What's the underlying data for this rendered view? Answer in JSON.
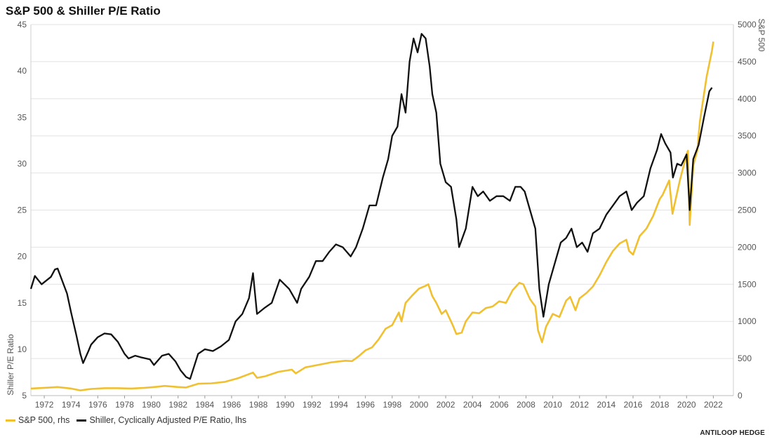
{
  "chart_data": {
    "type": "line",
    "title": "S&P 500 & Shiller P/E Ratio",
    "ylabel_left": "Shiller P/E Ratio",
    "ylabel_right": "S&P 500",
    "xlim": [
      1971,
      2023.5
    ],
    "ylim_left": [
      5,
      45
    ],
    "ylim_right": [
      0,
      5000
    ],
    "x_ticks": [
      1972,
      1974,
      1976,
      1978,
      1980,
      1982,
      1984,
      1986,
      1988,
      1990,
      1992,
      1994,
      1996,
      1998,
      2000,
      2002,
      2004,
      2006,
      2008,
      2010,
      2012,
      2014,
      2016,
      2018,
      2020,
      2022
    ],
    "y_ticks_left": [
      5,
      10,
      15,
      20,
      25,
      30,
      35,
      40,
      45
    ],
    "y_ticks_right": [
      0,
      500,
      1000,
      1500,
      2000,
      2500,
      3000,
      3500,
      4000,
      4500,
      5000
    ],
    "grid": true,
    "legend_position": "bottom-left",
    "series": [
      {
        "name": "S&P 500, rhs",
        "axis": "right",
        "color": "#f0c030",
        "x": [
          1971.0,
          1972.0,
          1973.0,
          1974.0,
          1974.7,
          1975.5,
          1976.5,
          1977.5,
          1978.5,
          1979.5,
          1980.5,
          1981.0,
          1982.0,
          1982.6,
          1983.5,
          1984.5,
          1985.5,
          1986.5,
          1987.6,
          1987.9,
          1988.5,
          1989.5,
          1990.5,
          1990.8,
          1991.5,
          1992.5,
          1993.5,
          1994.5,
          1995.0,
          1995.5,
          1996.0,
          1996.5,
          1997.0,
          1997.5,
          1998.0,
          1998.5,
          1998.7,
          1999.0,
          1999.5,
          2000.0,
          2000.5,
          2000.7,
          2001.0,
          2001.3,
          2001.7,
          2002.0,
          2002.5,
          2002.8,
          2003.2,
          2003.5,
          2004.0,
          2004.5,
          2005.0,
          2005.5,
          2006.0,
          2006.5,
          2007.0,
          2007.5,
          2007.8,
          2008.3,
          2008.7,
          2008.9,
          2009.2,
          2009.5,
          2010.0,
          2010.5,
          2011.0,
          2011.3,
          2011.7,
          2012.0,
          2012.5,
          2013.0,
          2013.5,
          2014.0,
          2014.5,
          2015.0,
          2015.5,
          2015.7,
          2016.0,
          2016.5,
          2017.0,
          2017.5,
          2018.0,
          2018.2,
          2018.7,
          2018.95,
          2019.5,
          2020.0,
          2020.1,
          2020.23,
          2020.5,
          2020.8,
          2021.0,
          2021.5,
          2021.9,
          2022.0
        ],
        "values": [
          95,
          105,
          115,
          95,
          70,
          90,
          100,
          100,
          95,
          105,
          120,
          130,
          115,
          110,
          160,
          165,
          185,
          235,
          310,
          240,
          260,
          320,
          350,
          300,
          380,
          415,
          450,
          470,
          465,
          530,
          610,
          650,
          760,
          900,
          950,
          1120,
          1000,
          1250,
          1350,
          1440,
          1480,
          1500,
          1340,
          1250,
          1100,
          1150,
          960,
          830,
          850,
          1000,
          1120,
          1110,
          1180,
          1200,
          1270,
          1250,
          1420,
          1520,
          1500,
          1300,
          1200,
          880,
          720,
          930,
          1100,
          1060,
          1280,
          1330,
          1150,
          1310,
          1380,
          1470,
          1620,
          1800,
          1950,
          2050,
          2100,
          1950,
          1900,
          2150,
          2250,
          2420,
          2650,
          2700,
          2900,
          2450,
          2900,
          3250,
          3300,
          2300,
          3100,
          3300,
          3700,
          4300,
          4650,
          4770
        ]
      },
      {
        "name": "Shiller, Cyclically Adjusted P/E Ratio, lhs",
        "axis": "left",
        "color": "#111111",
        "x": [
          1971.0,
          1971.3,
          1971.8,
          1972.5,
          1972.8,
          1973.0,
          1973.7,
          1974.0,
          1974.4,
          1974.7,
          1974.9,
          1975.3,
          1975.5,
          1976.0,
          1976.5,
          1977.0,
          1977.5,
          1978.0,
          1978.3,
          1978.8,
          1979.3,
          1979.9,
          1980.2,
          1980.8,
          1981.3,
          1981.8,
          1982.2,
          1982.6,
          1982.9,
          1983.5,
          1984.0,
          1984.6,
          1985.2,
          1985.8,
          1986.3,
          1986.8,
          1987.3,
          1987.6,
          1987.9,
          1988.5,
          1989.0,
          1989.6,
          1990.3,
          1990.9,
          1991.2,
          1991.8,
          1992.3,
          1992.8,
          1993.3,
          1993.8,
          1994.3,
          1994.9,
          1995.3,
          1995.8,
          1996.3,
          1996.8,
          1997.3,
          1997.7,
          1998.0,
          1998.4,
          1998.7,
          1999.0,
          1999.3,
          1999.6,
          1999.9,
          2000.2,
          2000.5,
          2000.8,
          2001.0,
          2001.3,
          2001.6,
          2002.0,
          2002.4,
          2002.8,
          2003.0,
          2003.5,
          2004.0,
          2004.4,
          2004.8,
          2005.3,
          2005.8,
          2006.3,
          2006.8,
          2007.2,
          2007.6,
          2007.9,
          2008.3,
          2008.7,
          2009.0,
          2009.3,
          2009.7,
          2010.2,
          2010.6,
          2011.0,
          2011.4,
          2011.8,
          2012.2,
          2012.6,
          2013.0,
          2013.5,
          2014.0,
          2014.5,
          2015.0,
          2015.5,
          2015.9,
          2016.3,
          2016.8,
          2017.3,
          2017.8,
          2018.1,
          2018.4,
          2018.8,
          2018.98,
          2019.3,
          2019.6,
          2020.0,
          2020.23,
          2020.5,
          2020.9,
          2021.3,
          2021.7,
          2021.9
        ],
        "values": [
          16.5,
          17.9,
          17.0,
          17.8,
          18.6,
          18.7,
          16.0,
          14.0,
          11.5,
          9.5,
          8.5,
          9.8,
          10.5,
          11.3,
          11.7,
          11.6,
          10.8,
          9.5,
          9.0,
          9.3,
          9.1,
          8.9,
          8.3,
          9.3,
          9.5,
          8.7,
          7.7,
          7.0,
          6.8,
          9.5,
          10.0,
          9.8,
          10.3,
          11.0,
          13.0,
          13.8,
          15.5,
          18.2,
          13.8,
          14.5,
          15.0,
          17.5,
          16.5,
          15.0,
          16.5,
          17.8,
          19.5,
          19.5,
          20.5,
          21.3,
          21.0,
          20.0,
          21.0,
          23.0,
          25.5,
          25.5,
          28.5,
          30.5,
          33.0,
          34.0,
          37.5,
          35.5,
          41.0,
          43.5,
          42.0,
          44.0,
          43.5,
          40.5,
          37.5,
          35.5,
          30.0,
          28.0,
          27.5,
          24.0,
          21.0,
          23.0,
          27.5,
          26.5,
          27.0,
          26.0,
          26.5,
          26.5,
          26.0,
          27.5,
          27.5,
          27.0,
          25.0,
          23.0,
          16.5,
          13.5,
          17.0,
          19.5,
          21.5,
          22.0,
          23.0,
          21.0,
          21.5,
          20.5,
          22.5,
          23.0,
          24.5,
          25.5,
          26.5,
          27.0,
          25.0,
          25.8,
          26.5,
          29.5,
          31.5,
          33.2,
          32.2,
          31.2,
          28.5,
          30.0,
          29.8,
          31.0,
          25.0,
          30.5,
          32.0,
          35.0,
          37.8,
          38.2
        ]
      }
    ]
  },
  "legend": {
    "items": [
      {
        "label": "S&P 500, rhs",
        "color": "#f0c030"
      },
      {
        "label": "Shiller, Cyclically Adjusted P/E Ratio, lhs",
        "color": "#111111"
      }
    ]
  },
  "credit": "ANTILOOP HEDGE"
}
